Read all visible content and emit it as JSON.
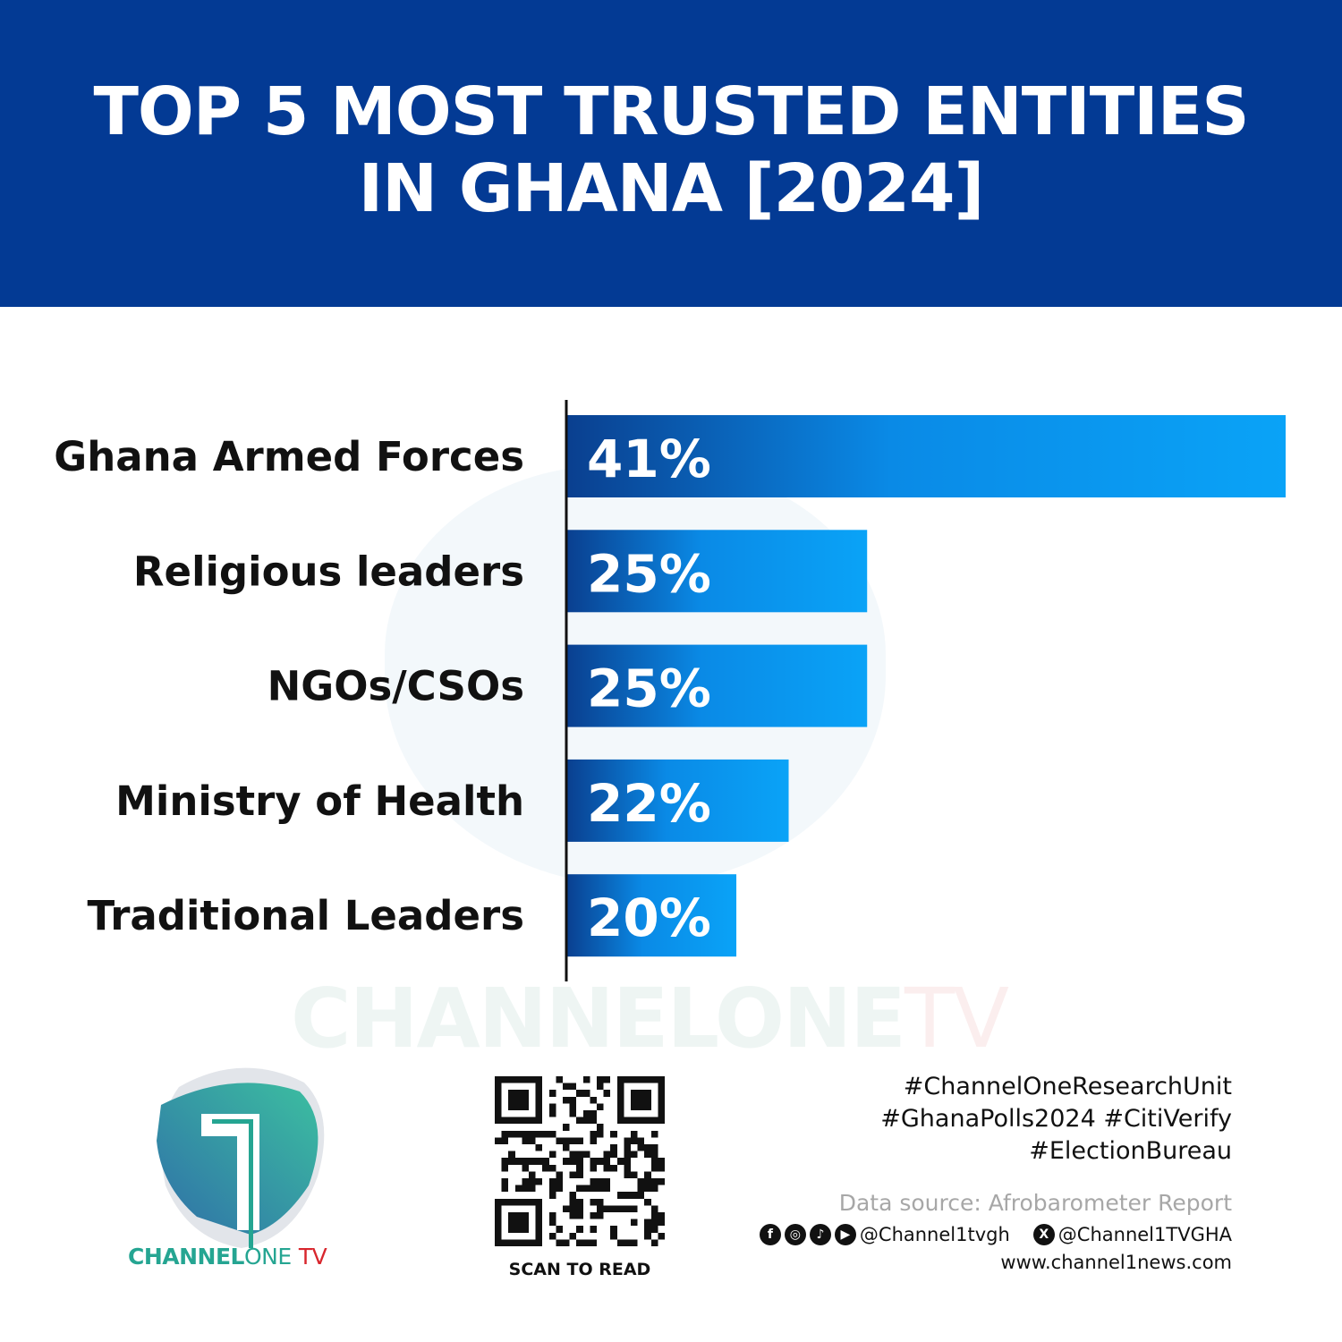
{
  "header": {
    "title_line1": "TOP 5 MOST TRUSTED ENTITIES",
    "title_line2": "IN GHANA [2024]"
  },
  "colors": {
    "header_bg": "#033a94",
    "bar_start": "#0a3f8f",
    "bar_end": "#0aa3f7"
  },
  "chart_data": {
    "type": "bar",
    "orientation": "horizontal",
    "title": "TOP 5 MOST TRUSTED ENTITIES IN GHANA [2024]",
    "categories": [
      "Ghana Armed Forces",
      "Religious leaders",
      "NGOs/CSOs",
      "Ministry of Health",
      "Traditional Leaders"
    ],
    "values": [
      41,
      25,
      25,
      22,
      20
    ],
    "value_labels": [
      "41%",
      "25%",
      "25%",
      "22%",
      "20%"
    ],
    "unit": "%",
    "xlim": [
      13.5,
      41
    ],
    "grid": false,
    "legend": "none"
  },
  "watermark": {
    "main": "CHANNELONE",
    "tv": "TV"
  },
  "logo": {
    "brand": "CHANNEL",
    "one": "ONE",
    "tv": "TV"
  },
  "qr": {
    "caption": "SCAN TO READ"
  },
  "footer": {
    "hashtags": [
      "#ChannelOneResearchUnit",
      "#GhanaPolls2024 #CitiVerify",
      "#ElectionBureau"
    ],
    "source": "Data source: Afrobarometer Report",
    "social_icons": [
      "facebook-icon",
      "instagram-icon",
      "tiktok-icon",
      "youtube-icon"
    ],
    "handle_social": "@Channel1tvgh",
    "handle_x": "@Channel1TVGHA",
    "website": "www.channel1news.com"
  }
}
